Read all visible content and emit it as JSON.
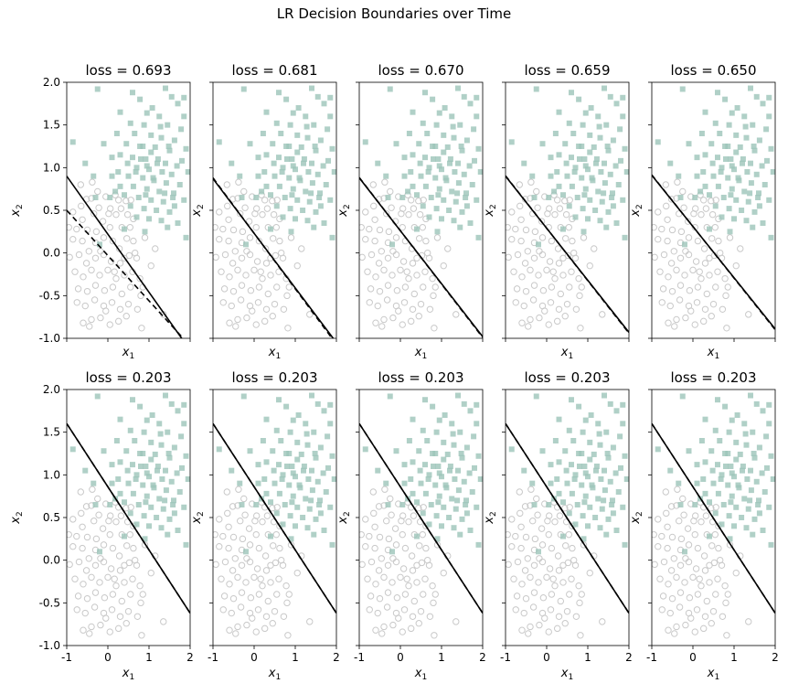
{
  "title": "LR Decision Boundaries over Time",
  "colors": {
    "class0": "#c9c9c9",
    "class1": "#9cc4b9",
    "line": "#000000"
  },
  "chart_data": {
    "type": "scatter",
    "title": "LR Decision Boundaries over Time",
    "xlim": [
      -1,
      2
    ],
    "ylim": [
      -1,
      2
    ],
    "xticks": [
      -1,
      0,
      1,
      2
    ],
    "yticks": [
      -1.0,
      -0.5,
      0.0,
      0.5,
      1.0,
      1.5,
      2.0
    ],
    "xlabel": "x1",
    "ylabel": "x2",
    "grid": false,
    "boundary_encoding": "line x2 = intercept + slope * x1",
    "panels": [
      {
        "title": "loss = 0.693",
        "boundary": {
          "intercept": 0.22,
          "slope": -0.68
        },
        "dashed": {
          "intercept": -0.03,
          "slope": -0.53
        }
      },
      {
        "title": "loss = 0.681",
        "boundary": {
          "intercept": 0.23,
          "slope": -0.64
        },
        "dashed": {
          "intercept": 0.23,
          "slope": -0.65
        }
      },
      {
        "title": "loss = 0.670",
        "boundary": {
          "intercept": 0.26,
          "slope": -0.62
        },
        "dashed": {
          "intercept": 0.26,
          "slope": -0.625
        }
      },
      {
        "title": "loss = 0.659",
        "boundary": {
          "intercept": 0.29,
          "slope": -0.61
        },
        "dashed": {
          "intercept": 0.29,
          "slope": -0.615
        }
      },
      {
        "title": "loss = 0.650",
        "boundary": {
          "intercept": 0.31,
          "slope": -0.6
        },
        "dashed": {
          "intercept": 0.31,
          "slope": -0.605
        }
      },
      {
        "title": "loss = 0.203",
        "boundary": {
          "intercept": 0.86,
          "slope": -0.74
        },
        "dashed": {
          "intercept": 0.86,
          "slope": -0.74
        }
      },
      {
        "title": "loss = 0.203",
        "boundary": {
          "intercept": 0.86,
          "slope": -0.74
        },
        "dashed": {
          "intercept": 0.86,
          "slope": -0.74
        }
      },
      {
        "title": "loss = 0.203",
        "boundary": {
          "intercept": 0.86,
          "slope": -0.74
        },
        "dashed": {
          "intercept": 0.86,
          "slope": -0.74
        }
      },
      {
        "title": "loss = 0.203",
        "boundary": {
          "intercept": 0.86,
          "slope": -0.74
        },
        "dashed": {
          "intercept": 0.86,
          "slope": -0.74
        }
      },
      {
        "title": "loss = 0.203",
        "boundary": {
          "intercept": 0.86,
          "slope": -0.74
        },
        "dashed": {
          "intercept": 0.86,
          "slope": -0.74
        }
      }
    ],
    "series": [
      {
        "label": 0,
        "marker": "circle",
        "points": [
          [
            -0.66,
            0.8
          ],
          [
            -0.52,
            0.63
          ],
          [
            -0.4,
            0.64
          ],
          [
            -0.34,
            0.46
          ],
          [
            -0.22,
            0.53
          ],
          [
            -0.05,
            0.66
          ],
          [
            0.06,
            0.52
          ],
          [
            0.2,
            0.45
          ],
          [
            0.32,
            0.52
          ],
          [
            0.48,
            0.45
          ],
          [
            0.62,
            0.4
          ],
          [
            0.44,
            0.61
          ],
          [
            0.18,
            0.68
          ],
          [
            -0.62,
            0.39
          ],
          [
            -0.76,
            0.28
          ],
          [
            -0.5,
            0.27
          ],
          [
            -0.28,
            0.25
          ],
          [
            -0.12,
            0.37
          ],
          [
            0.05,
            0.3
          ],
          [
            0.34,
            0.3
          ],
          [
            0.54,
            0.3
          ],
          [
            -0.85,
            0.16
          ],
          [
            -0.62,
            0.14
          ],
          [
            -0.46,
            0.02
          ],
          [
            -0.3,
            0.12
          ],
          [
            -0.1,
            0.18
          ],
          [
            0.12,
            0.14
          ],
          [
            0.28,
            0.05
          ],
          [
            0.46,
            0.17
          ],
          [
            0.62,
            0.14
          ],
          [
            -0.93,
            -0.05
          ],
          [
            -0.7,
            -0.02
          ],
          [
            -0.52,
            -0.12
          ],
          [
            -0.3,
            -0.06
          ],
          [
            -0.1,
            -0.02
          ],
          [
            0.08,
            -0.1
          ],
          [
            0.3,
            -0.12
          ],
          [
            0.52,
            -0.03
          ],
          [
            0.7,
            -0.06
          ],
          [
            -0.8,
            -0.22
          ],
          [
            -0.6,
            -0.28
          ],
          [
            -0.4,
            -0.2
          ],
          [
            -0.2,
            -0.26
          ],
          [
            0.0,
            -0.2
          ],
          [
            0.2,
            -0.3
          ],
          [
            0.4,
            -0.26
          ],
          [
            0.6,
            -0.22
          ],
          [
            0.78,
            -0.3
          ],
          [
            -0.72,
            -0.42
          ],
          [
            -0.5,
            -0.45
          ],
          [
            -0.3,
            -0.38
          ],
          [
            -0.08,
            -0.44
          ],
          [
            0.12,
            -0.4
          ],
          [
            0.34,
            -0.48
          ],
          [
            0.55,
            -0.4
          ],
          [
            0.8,
            -0.5
          ],
          [
            -0.75,
            -0.58
          ],
          [
            -0.55,
            -0.62
          ],
          [
            -0.32,
            -0.55
          ],
          [
            -0.1,
            -0.62
          ],
          [
            0.1,
            -0.58
          ],
          [
            0.3,
            -0.66
          ],
          [
            0.5,
            -0.6
          ],
          [
            0.72,
            -0.66
          ],
          [
            -0.6,
            -0.82
          ],
          [
            -0.4,
            -0.78
          ],
          [
            -0.18,
            -0.76
          ],
          [
            0.05,
            -0.84
          ],
          [
            0.26,
            -0.8
          ],
          [
            0.45,
            -0.74
          ],
          [
            1.35,
            -0.72
          ],
          [
            0.82,
            -0.88
          ],
          [
            -0.45,
            -0.86
          ],
          [
            -0.05,
            -0.68
          ],
          [
            0.16,
            -0.22
          ],
          [
            -0.18,
            0.02
          ],
          [
            0.4,
            -0.06
          ],
          [
            -0.65,
            0.55
          ],
          [
            0.02,
            0.46
          ],
          [
            0.56,
            0.62
          ],
          [
            -0.38,
            0.83
          ],
          [
            -0.85,
            0.48
          ],
          [
            0.9,
            0.18
          ],
          [
            1.05,
            -0.15
          ],
          [
            1.15,
            0.05
          ],
          [
            0.85,
            -0.4
          ],
          [
            -0.25,
            0.72
          ],
          [
            0.26,
            0.62
          ],
          [
            -0.95,
            0.3
          ],
          [
            0.66,
            0.0
          ]
        ]
      },
      {
        "label": 1,
        "marker": "square",
        "points": [
          [
            -0.25,
            1.92
          ],
          [
            0.6,
            1.88
          ],
          [
            1.4,
            1.93
          ],
          [
            1.55,
            1.83
          ],
          [
            0.78,
            1.8
          ],
          [
            1.08,
            1.7
          ],
          [
            1.7,
            1.75
          ],
          [
            1.85,
            1.82
          ],
          [
            0.3,
            1.65
          ],
          [
            0.95,
            1.64
          ],
          [
            1.25,
            1.6
          ],
          [
            0.55,
            1.52
          ],
          [
            0.88,
            1.5
          ],
          [
            1.45,
            1.5
          ],
          [
            1.78,
            1.45
          ],
          [
            0.22,
            1.4
          ],
          [
            0.65,
            1.4
          ],
          [
            1.05,
            1.38
          ],
          [
            1.3,
            1.35
          ],
          [
            1.62,
            1.32
          ],
          [
            0.45,
            1.28
          ],
          [
            0.78,
            1.25
          ],
          [
            1.15,
            1.24
          ],
          [
            1.5,
            1.2
          ],
          [
            1.9,
            1.22
          ],
          [
            0.3,
            1.15
          ],
          [
            0.6,
            1.12
          ],
          [
            0.92,
            1.1
          ],
          [
            1.22,
            1.1
          ],
          [
            1.4,
            1.05
          ],
          [
            1.68,
            1.02
          ],
          [
            0.7,
            1.0
          ],
          [
            1.0,
            0.98
          ],
          [
            1.32,
            0.95
          ],
          [
            1.55,
            0.92
          ],
          [
            0.5,
            0.9
          ],
          [
            0.85,
            0.88
          ],
          [
            1.12,
            0.85
          ],
          [
            1.42,
            0.82
          ],
          [
            1.75,
            0.8
          ],
          [
            0.62,
            0.78
          ],
          [
            0.95,
            0.75
          ],
          [
            1.25,
            0.72
          ],
          [
            1.6,
            0.7
          ],
          [
            0.4,
            0.68
          ],
          [
            0.75,
            0.65
          ],
          [
            1.05,
            0.62
          ],
          [
            1.35,
            0.6
          ],
          [
            1.85,
            0.62
          ],
          [
            0.55,
            0.55
          ],
          [
            0.88,
            0.52
          ],
          [
            1.18,
            0.5
          ],
          [
            1.5,
            0.48
          ],
          [
            0.7,
            0.42
          ],
          [
            1.0,
            0.4
          ],
          [
            1.3,
            0.38
          ],
          [
            1.7,
            0.35
          ],
          [
            1.9,
            0.18
          ],
          [
            0.4,
            0.28
          ],
          [
            0.9,
            0.25
          ],
          [
            -0.85,
            1.3
          ],
          [
            -0.55,
            1.05
          ],
          [
            -0.1,
            1.28
          ],
          [
            0.1,
            1.12
          ],
          [
            0.25,
            0.95
          ],
          [
            -0.35,
            0.9
          ],
          [
            0.05,
            0.65
          ],
          [
            0.85,
            1.25
          ],
          [
            1.48,
            1.25
          ],
          [
            1.2,
            1.05
          ],
          [
            0.8,
            1.1
          ],
          [
            1.1,
            0.88
          ],
          [
            0.68,
            0.95
          ],
          [
            0.95,
            1.02
          ],
          [
            1.58,
            0.65
          ],
          [
            1.28,
            1.48
          ],
          [
            1.8,
            1.08
          ],
          [
            0.3,
            0.78
          ],
          [
            1.45,
            0.3
          ],
          [
            1.05,
            1.18
          ],
          [
            0.18,
            0.72
          ],
          [
            -0.3,
            0.65
          ],
          [
            -0.2,
            0.1
          ],
          [
            1.62,
            0.55
          ],
          [
            0.48,
            1.05
          ],
          [
            1.95,
            0.95
          ],
          [
            1.85,
            1.6
          ],
          [
            0.1,
            0.9
          ],
          [
            0.92,
            0.68
          ],
          [
            1.38,
            0.7
          ]
        ]
      }
    ]
  }
}
